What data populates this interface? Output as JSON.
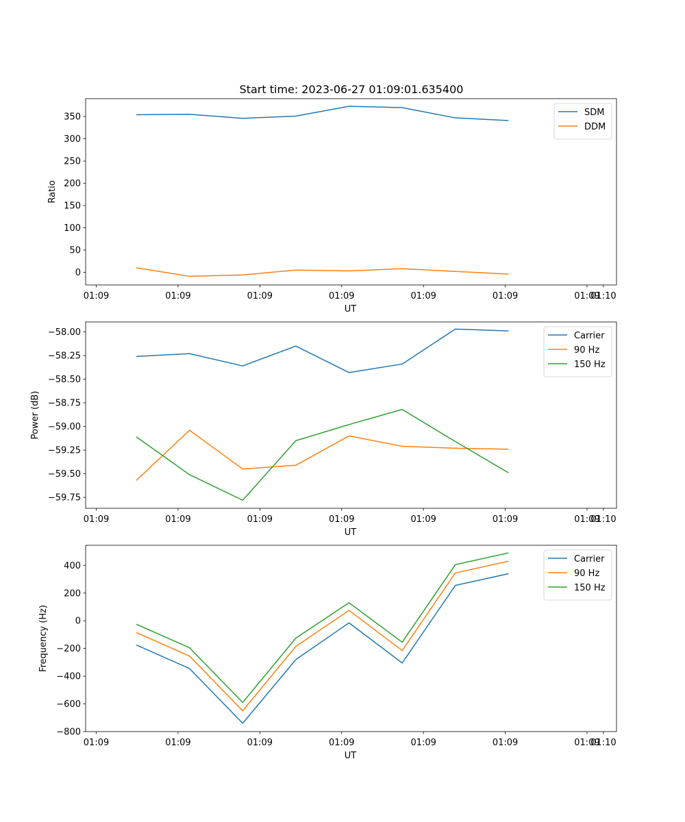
{
  "figure": {
    "title": "Start time: 2023-06-27 01:09:01.635400"
  },
  "chart_data": [
    {
      "type": "line",
      "ylabel": "Ratio",
      "xlabel": "UT",
      "x_tick_labels": [
        "01:09",
        "01:09",
        "01:09",
        "01:09",
        "01:09",
        "01:09",
        "01:09",
        "01:10"
      ],
      "x_tick_values": [
        0,
        1,
        2,
        3,
        4,
        5,
        6,
        6.2
      ],
      "xlim": [
        -0.13,
        6.36
      ],
      "ylim": [
        -28.5,
        390.2
      ],
      "y_ticks": [
        0,
        50,
        100,
        150,
        200,
        250,
        300,
        350
      ],
      "x": [
        0.49,
        1.14,
        1.79,
        2.44,
        3.09,
        3.74,
        4.39,
        5.04
      ],
      "legend": "upper-right",
      "series": [
        {
          "name": "SDM",
          "color": "#1f77b4",
          "values": [
            354,
            355,
            346,
            351,
            373,
            370,
            347,
            341
          ]
        },
        {
          "name": "DDM",
          "color": "#ff7f0e",
          "values": [
            10,
            -9,
            -6,
            5,
            3,
            8,
            2,
            -4
          ]
        }
      ]
    },
    {
      "type": "line",
      "ylabel": "Power (dB)",
      "xlabel": "UT",
      "x_tick_labels": [
        "01:09",
        "01:09",
        "01:09",
        "01:09",
        "01:09",
        "01:09",
        "01:09",
        "01:10"
      ],
      "x_tick_values": [
        0,
        1,
        2,
        3,
        4,
        5,
        6,
        6.2
      ],
      "xlim": [
        -0.13,
        6.36
      ],
      "ylim": [
        -59.865,
        -57.895
      ],
      "y_ticks": [
        -59.75,
        -59.5,
        -59.25,
        -59.0,
        -58.75,
        -58.5,
        -58.25,
        -58.0
      ],
      "x": [
        0.49,
        1.14,
        1.79,
        2.44,
        3.09,
        3.74,
        4.39,
        5.04
      ],
      "legend": "upper-right",
      "series": [
        {
          "name": "Carrier",
          "color": "#1f77b4",
          "values": [
            -58.26,
            -58.23,
            -58.36,
            -58.15,
            -58.43,
            -58.34,
            -57.97,
            -57.99
          ]
        },
        {
          "name": "90 Hz",
          "color": "#ff7f0e",
          "values": [
            -59.57,
            -59.04,
            -59.45,
            -59.41,
            -59.1,
            -59.21,
            -59.23,
            -59.24
          ]
        },
        {
          "name": "150 Hz",
          "color": "#2ca02c",
          "values": [
            -59.11,
            -59.51,
            -59.78,
            -59.15,
            -58.98,
            -58.82,
            -59.16,
            -59.49
          ]
        }
      ]
    },
    {
      "type": "line",
      "ylabel": "Frequency (Hz)",
      "xlabel": "UT",
      "x_tick_labels": [
        "01:09",
        "01:09",
        "01:09",
        "01:09",
        "01:09",
        "01:09",
        "01:09",
        "01:10"
      ],
      "x_tick_values": [
        0,
        1,
        2,
        3,
        4,
        5,
        6,
        6.2
      ],
      "xlim": [
        -0.13,
        6.36
      ],
      "ylim": [
        -800,
        545
      ],
      "y_ticks": [
        -800,
        -600,
        -400,
        -200,
        0,
        200,
        400
      ],
      "x": [
        0.49,
        1.14,
        1.79,
        2.44,
        3.09,
        3.74,
        4.39,
        5.04
      ],
      "legend": "upper-right",
      "series": [
        {
          "name": "Carrier",
          "color": "#1f77b4",
          "values": [
            -175,
            -345,
            -740,
            -280,
            -15,
            -305,
            255,
            340
          ]
        },
        {
          "name": "90 Hz",
          "color": "#ff7f0e",
          "values": [
            -85,
            -255,
            -650,
            -185,
            75,
            -215,
            345,
            430
          ]
        },
        {
          "name": "150 Hz",
          "color": "#2ca02c",
          "values": [
            -25,
            -195,
            -590,
            -125,
            130,
            -155,
            405,
            490
          ]
        }
      ]
    }
  ]
}
